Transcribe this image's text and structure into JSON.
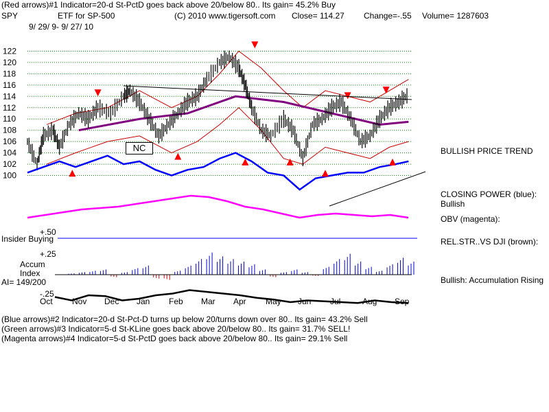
{
  "header": {
    "line1": "(Red arrows)#1 Indicator=20-d St-PctD goes back above 20/below 80.. Its gain= 45.2% Buy",
    "symbol": "SPY",
    "name": "ETF for SP-500",
    "copyright": "(C) 2010 www.tigersoft.com",
    "close": "Close=  114.27",
    "change": "Change=-.55",
    "volume": "Volume= 1287603",
    "dates": "9/ 29/ 9-  9/ 27/ 10"
  },
  "annotations": {
    "nc": "NC",
    "insider": "Insider Buying",
    "plus50": "+.50",
    "plus25": "+.25",
    "minus25": "-.25",
    "accum1": "Accum",
    "accum2": "Index",
    "ai": "AI= 149/200"
  },
  "right_labels": {
    "trend": "BULLISH PRICE TREND",
    "cp1": "CLOSING POWER (blue):",
    "cp2": "Bullish",
    "obv": "OBV (magenta):",
    "rel": "REL.STR..VS DJI (brown):",
    "acc": "Bullish: Accumulation Rising"
  },
  "footer": {
    "l1": "(Blue arrows)#2 Indicator=20-d St-Pct-D turns up below 20/turns down over 80.. Its gain= 43.2% Sell",
    "l2": "(Green arrows)#3 Indicator=5-d St-KLine goes back above 20/below 80.. Its gain= 31.7% SELL!",
    "l3": "(Magenta arrows)#4 Indicator=5-d St-PctD goes back above 20/below 80.. Its gain= 29.1% Sell"
  },
  "colors": {
    "price": "#000000",
    "band": "#cc0000",
    "ma": "#800080",
    "closing_power": "#0000ff",
    "obv": "#ff00ff",
    "rel_strength": "#000000",
    "accum_pos": "#0000cc",
    "accum_neg": "#cc0000",
    "arrow": "#ff0000",
    "grid": "#008000"
  },
  "chart_data": {
    "type": "line",
    "ylim": [
      98,
      124
    ],
    "y_ticks": [
      100,
      102,
      104,
      106,
      108,
      110,
      112,
      114,
      116,
      118,
      120,
      122
    ],
    "months": [
      "Oct",
      "Nov",
      "Dec",
      "Jan",
      "Feb",
      "Mar",
      "Apr",
      "May",
      "Jun",
      "Jul",
      "Aug",
      "Sep"
    ],
    "x_range": [
      0,
      12
    ],
    "price": {
      "x": [
        0,
        0.3,
        0.5,
        0.8,
        1.0,
        1.3,
        1.6,
        1.9,
        2.2,
        2.6,
        3.0,
        3.2,
        3.5,
        3.8,
        4.1,
        4.4,
        4.7,
        5.0,
        5.3,
        5.6,
        6.0,
        6.3,
        6.6,
        6.8,
        7.0,
        7.3,
        7.6,
        8.0,
        8.3,
        8.6,
        8.9,
        9.2,
        9.5,
        9.8,
        10.1,
        10.4,
        10.7,
        11.0,
        11.3,
        11.6,
        11.9
      ],
      "y": [
        106,
        102,
        107,
        108,
        105,
        109,
        111,
        110,
        112,
        111,
        114,
        115,
        113,
        110,
        107,
        109,
        111,
        113,
        114,
        117,
        120,
        121,
        119,
        116,
        112,
        108,
        107,
        110,
        108,
        103,
        109,
        110,
        112,
        113,
        110,
        106,
        107,
        110,
        112,
        113,
        114.3
      ]
    },
    "series": [
      {
        "name": "",
        "x": [
          1.6,
          3.5,
          5.0,
          6.5,
          8.0,
          9.5,
          11.0,
          11.9
        ],
        "y": [
          108,
          110,
          111,
          114,
          113,
          111,
          109,
          109.5
        ]
      },
      {
        "name": "",
        "x": [
          0.6,
          1.5,
          2.5,
          3.5,
          4.5,
          5.3,
          6.0,
          6.6,
          7.3,
          8.0,
          8.6,
          9.3,
          10.0,
          10.7,
          11.3,
          11.9
        ],
        "y": [
          109,
          111,
          112,
          115,
          112,
          114,
          118,
          122,
          119,
          115,
          112,
          115,
          114,
          113,
          115,
          117
        ]
      },
      {
        "name": "",
        "x": [
          0.6,
          1.5,
          2.5,
          3.5,
          4.5,
          5.3,
          6.0,
          6.6,
          7.3,
          8.0,
          8.6,
          9.3,
          10.0,
          10.7,
          11.3,
          11.9
        ],
        "y": [
          102,
          104,
          106,
          107,
          104,
          106,
          109,
          112,
          108,
          103,
          102,
          105,
          104,
          103,
          105,
          106
        ]
      },
      {
        "name": "",
        "x": [
          0,
          0.5,
          1.0,
          1.5,
          2.0,
          2.5,
          3.0,
          3.5,
          4.0,
          4.5,
          5.0,
          5.5,
          6.0,
          6.5,
          7.0,
          7.5,
          8.0,
          8.5,
          9.0,
          9.5,
          10.0,
          10.5,
          11.0,
          11.5,
          11.9
        ],
        "y": [
          100.5,
          101.5,
          102.5,
          101.5,
          102.5,
          103.5,
          102,
          102.5,
          101,
          100,
          101,
          101.5,
          103,
          104,
          102.5,
          100.5,
          100,
          97.5,
          99.5,
          100,
          100.5,
          100.5,
          101.5,
          102,
          102.5
        ]
      }
    ],
    "obv": [
      0.2,
      0.3,
      0.4,
      0.5,
      0.55,
      0.6,
      0.7,
      0.8,
      0.9,
      1.0,
      0.95,
      0.8,
      0.6,
      0.5,
      0.35,
      0.2,
      0.3,
      0.35,
      0.3,
      0.25,
      0.3,
      0.2
    ],
    "accum": [
      0.05,
      0.1,
      0.15,
      0.2,
      -0.1,
      0.1,
      0.25,
      0.35,
      -0.15,
      -0.2,
      0.15,
      0.35,
      0.6,
      0.85,
      0.7,
      0.6,
      0.5,
      0.4,
      0.2,
      -0.1,
      0.1,
      0.2,
      0.1,
      -0.05,
      0.3,
      0.6,
      0.8,
      0.5,
      0.3,
      0.15,
      0.4,
      0.65,
      0.5
    ],
    "rel_strength": [
      0.5,
      0.3,
      0.6,
      0.55,
      0.3,
      0.4,
      0.6,
      0.7,
      0.9,
      0.8,
      0.7,
      0.6,
      0.45,
      0.35,
      0.2,
      0.3,
      0.25,
      0.2,
      0.15,
      0.3,
      0.2,
      0.15
    ],
    "red_arrows_down": [
      [
        2.2,
        114
      ],
      [
        7.1,
        122.5
      ],
      [
        10.0,
        113.5
      ],
      [
        11.2,
        114.5
      ]
    ],
    "red_arrows_up": [
      [
        1.4,
        101
      ],
      [
        4.7,
        104
      ],
      [
        6.8,
        103
      ],
      [
        8.2,
        103
      ],
      [
        9.3,
        101
      ],
      [
        11.4,
        103
      ]
    ]
  }
}
